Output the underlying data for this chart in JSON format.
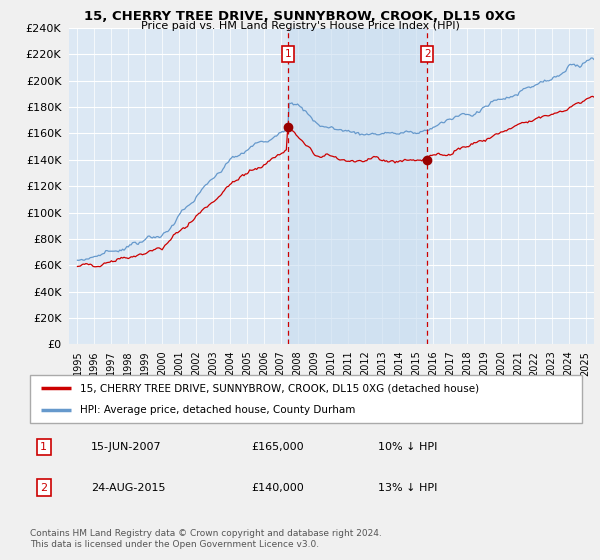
{
  "title": "15, CHERRY TREE DRIVE, SUNNYBROW, CROOK, DL15 0XG",
  "subtitle": "Price paid vs. HM Land Registry's House Price Index (HPI)",
  "legend_line1": "15, CHERRY TREE DRIVE, SUNNYBROW, CROOK, DL15 0XG (detached house)",
  "legend_line2": "HPI: Average price, detached house, County Durham",
  "annotation1_num": "1",
  "annotation1_date": "15-JUN-2007",
  "annotation1_price": "£165,000",
  "annotation1_hpi": "10% ↓ HPI",
  "annotation2_num": "2",
  "annotation2_date": "24-AUG-2015",
  "annotation2_price": "£140,000",
  "annotation2_hpi": "13% ↓ HPI",
  "footer": "Contains HM Land Registry data © Crown copyright and database right 2024.\nThis data is licensed under the Open Government Licence v3.0.",
  "vline1_x": 2007.45,
  "vline2_x": 2015.65,
  "ylim": [
    0,
    240000
  ],
  "yticks": [
    0,
    20000,
    40000,
    60000,
    80000,
    100000,
    120000,
    140000,
    160000,
    180000,
    200000,
    220000,
    240000
  ],
  "xlim_start": 1994.5,
  "xlim_end": 2025.5,
  "line_color_red": "#cc0000",
  "line_color_blue": "#6699cc",
  "vline_color": "#cc0000",
  "fig_bg_color": "#f0f0f0",
  "plot_bg_color": "#dce8f4",
  "shade_color": "#c8ddf0"
}
